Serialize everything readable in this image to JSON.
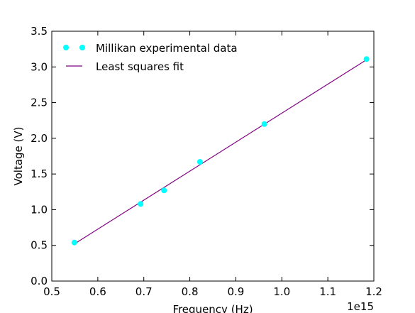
{
  "chart_data": {
    "type": "scatter",
    "title": "",
    "xlabel": "Frequency (Hz)",
    "ylabel": "Voltage (V)",
    "x_offset_label": "1e15",
    "xlim": [
      0.5,
      1.2
    ],
    "ylim": [
      0.0,
      3.5
    ],
    "x_scale_factor": 1000000000000000.0,
    "x_ticks": [
      "0.5",
      "0.6",
      "0.7",
      "0.8",
      "0.9",
      "1.0",
      "1.1",
      "1.2"
    ],
    "y_ticks": [
      "0.0",
      "0.5",
      "1.0",
      "1.5",
      "2.0",
      "2.5",
      "3.0",
      "3.5"
    ],
    "grid": false,
    "legend_position": "top-left",
    "series": [
      {
        "name": "Millikan experimental data",
        "kind": "scatter",
        "color": "#00ffff",
        "x": [
          0.549,
          0.693,
          0.744,
          0.822,
          0.962,
          1.184
        ],
        "y": [
          0.54,
          1.08,
          1.27,
          1.67,
          2.2,
          3.11
        ]
      },
      {
        "name": "Least squares fit",
        "kind": "line",
        "color": "#800080",
        "x": [
          0.549,
          1.184
        ],
        "y": [
          0.52,
          3.1
        ]
      }
    ]
  }
}
